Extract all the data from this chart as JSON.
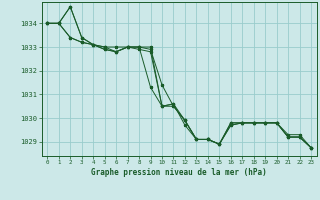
{
  "title": "Graphe pression niveau de la mer (hPa)",
  "background_color": "#cce8e8",
  "grid_color": "#99cccc",
  "line_color": "#1a5c2a",
  "x_ticks": [
    0,
    1,
    2,
    3,
    4,
    5,
    6,
    7,
    8,
    9,
    10,
    11,
    12,
    13,
    14,
    15,
    16,
    17,
    18,
    19,
    20,
    21,
    22,
    23
  ],
  "ylim": [
    1028.4,
    1034.9
  ],
  "ytick_vals": [
    1029,
    1030,
    1031,
    1032,
    1033,
    1034
  ],
  "series": [
    [
      1034.0,
      1034.0,
      1034.7,
      1033.4,
      1033.1,
      1033.0,
      1032.8,
      1033.0,
      1032.9,
      1032.8,
      1030.5,
      1030.6,
      1029.7,
      1029.1,
      1029.1,
      1028.9,
      1029.8,
      1029.8,
      1029.8,
      1029.8,
      1029.8,
      1029.3,
      1029.3,
      1028.75
    ],
    [
      1034.0,
      1034.0,
      1033.4,
      1033.2,
      1033.1,
      1032.9,
      1032.8,
      1033.0,
      1033.0,
      1032.9,
      1031.4,
      1030.5,
      1029.9,
      1029.1,
      1029.1,
      1028.9,
      1029.7,
      1029.8,
      1029.8,
      1029.8,
      1029.8,
      1029.2,
      1029.2,
      1028.75
    ],
    [
      1034.0,
      1034.0,
      1033.4,
      1033.2,
      1033.1,
      1032.9,
      1032.8,
      1033.0,
      1033.0,
      1031.3,
      1030.5,
      1030.5,
      1029.9,
      1029.1,
      1029.1,
      1028.9,
      1029.7,
      1029.8,
      1029.8,
      1029.8,
      1029.8,
      1029.2,
      1029.2,
      1028.75
    ],
    [
      1034.0,
      1034.0,
      1034.7,
      1033.4,
      1033.1,
      1033.0,
      1033.0,
      1033.0,
      1033.0,
      1033.0,
      1030.5,
      1030.6,
      1029.9,
      1029.1,
      1029.1,
      1028.9,
      1029.8,
      1029.8,
      1029.8,
      1029.8,
      1029.8,
      1029.2,
      1029.2,
      1028.75
    ]
  ]
}
